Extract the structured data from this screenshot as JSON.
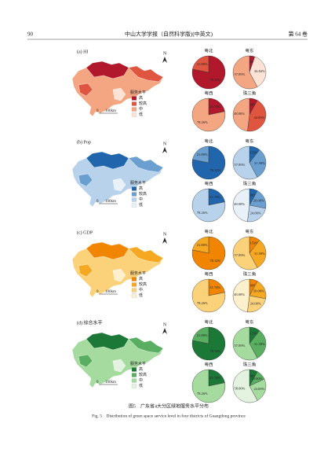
{
  "header": {
    "page": "90",
    "journal": "中山大学学报（自然科学版)(中英文)",
    "volume": "第 64 卷"
  },
  "panels": [
    {
      "label": "(a) HI",
      "north": "N",
      "scale": {
        "zero": "0",
        "end": "100km"
      },
      "legend": {
        "title": "服务水平",
        "levels": [
          "高",
          "较高",
          "中",
          "低"
        ],
        "colors": [
          "#b2182b",
          "#e0553f",
          "#f4a582",
          "#fde3d6"
        ]
      },
      "pies": [
        {
          "title": "粤北",
          "values": [
            78.12,
            21.88
          ],
          "value_labels": [
            "78.12%",
            "21.88%"
          ],
          "colors": [
            "#b2182b",
            "#e0553f"
          ]
        },
        {
          "title": "粤东",
          "values": [
            5.26,
            36.84,
            57.89
          ],
          "value_labels": [
            "5.26%",
            "36.84%",
            "57.89%"
          ],
          "colors": [
            "#b2182b",
            "#fde3d6",
            "#f4a582"
          ]
        },
        {
          "title": "粤西",
          "values": [
            21.74,
            78.26
          ],
          "value_labels": [
            "21.74%",
            "78.26%"
          ],
          "colors": [
            "#b2182b",
            "#f4a582"
          ]
        },
        {
          "title": "珠三角",
          "values": [
            8.0,
            44.0,
            48.0
          ],
          "value_labels": [
            "8.00%",
            "44.00%",
            "48.00%"
          ],
          "colors": [
            "#b2182b",
            "#e0553f",
            "#f4a582"
          ]
        }
      ]
    },
    {
      "label": "(b) Pop",
      "north": "N",
      "scale": {
        "zero": "0",
        "end": "100km"
      },
      "legend": {
        "title": "服务水平",
        "levels": [
          "高",
          "较高",
          "中",
          "低"
        ],
        "colors": [
          "#2166ac",
          "#6a9fd0",
          "#b7d2ea",
          "#e8f0f8"
        ]
      },
      "pies": [
        {
          "title": "粤北",
          "values": [
            78.12,
            21.88
          ],
          "value_labels": [
            "78.12%",
            "21.88%"
          ],
          "colors": [
            "#2166ac",
            "#6a9fd0"
          ]
        },
        {
          "title": "粤东",
          "values": [
            10.53,
            31.58,
            57.89
          ],
          "value_labels": [
            "10.53%",
            "31.58%",
            "57.89%"
          ],
          "colors": [
            "#2166ac",
            "#6a9fd0",
            "#b7d2ea"
          ]
        },
        {
          "title": "粤西",
          "values": [
            21.74,
            78.26
          ],
          "value_labels": [
            "21.74%",
            "78.26%"
          ],
          "colors": [
            "#2166ac",
            "#b7d2ea"
          ]
        },
        {
          "title": "珠三角",
          "values": [
            8.0,
            20.0,
            24.0,
            48.0
          ],
          "value_labels": [
            "8.00%",
            "20.00%",
            "24.00%",
            "48.00%"
          ],
          "colors": [
            "#2166ac",
            "#6a9fd0",
            "#b7d2ea",
            "#e8f0f8"
          ]
        }
      ]
    },
    {
      "label": "(c) GDP",
      "north": "N",
      "scale": {
        "zero": "0",
        "end": "100km"
      },
      "legend": {
        "title": "服务水平",
        "levels": [
          "高",
          "较高",
          "中",
          "低"
        ],
        "colors": [
          "#f28500",
          "#f7a823",
          "#fbd27a",
          "#fdf0cc"
        ]
      },
      "pies": [
        {
          "title": "粤北",
          "values": [
            78.12,
            21.88
          ],
          "value_labels": [
            "78.12%",
            "21.88%"
          ],
          "colors": [
            "#f28500",
            "#f7a823"
          ]
        },
        {
          "title": "粤东",
          "values": [
            10.53,
            31.58,
            57.89
          ],
          "value_labels": [
            "10.53%",
            "31.58%",
            "57.89%"
          ],
          "colors": [
            "#f28500",
            "#f7a823",
            "#fbd27a"
          ]
        },
        {
          "title": "粤西",
          "values": [
            21.74,
            78.26
          ],
          "value_labels": [
            "21.74%",
            "78.26%"
          ],
          "colors": [
            "#f28500",
            "#fbd27a"
          ]
        },
        {
          "title": "珠三角",
          "values": [
            8.0,
            20.0,
            24.0,
            48.0
          ],
          "value_labels": [
            "8.00%",
            "20.00%",
            "24.00%",
            "48.00%"
          ],
          "colors": [
            "#f28500",
            "#f7a823",
            "#fbd27a",
            "#fdf0cc"
          ]
        }
      ]
    },
    {
      "label": "(d) 综合水平",
      "north": "N",
      "scale": {
        "zero": "0",
        "end": "100km"
      },
      "legend": {
        "title": "服务水平",
        "levels": [
          "高",
          "较高",
          "中",
          "低"
        ],
        "colors": [
          "#1b7837",
          "#5aae61",
          "#a6dba0",
          "#e3f3df"
        ]
      },
      "pies": [
        {
          "title": "粤北",
          "values": [
            78.12,
            21.88
          ],
          "value_labels": [
            "78.12%",
            "21.88%"
          ],
          "colors": [
            "#1b7837",
            "#5aae61"
          ]
        },
        {
          "title": "粤东",
          "values": [
            10.53,
            31.58,
            57.89
          ],
          "value_labels": [
            "10.53%",
            "31.58%",
            "57.89%"
          ],
          "colors": [
            "#1b7837",
            "#5aae61",
            "#a6dba0"
          ]
        },
        {
          "title": "粤西",
          "values": [
            21.74,
            78.26
          ],
          "value_labels": [
            "21.74%",
            "78.26%"
          ],
          "colors": [
            "#1b7837",
            "#a6dba0"
          ]
        },
        {
          "title": "珠三角",
          "values": [
            8.0,
            10.0,
            24.0,
            58.0
          ],
          "value_labels": [
            "8.00%",
            "10.00%",
            "24.00%",
            "58.00%"
          ],
          "colors": [
            "#1b7837",
            "#5aae61",
            "#a6dba0",
            "#e3f3df"
          ]
        }
      ]
    }
  ],
  "caption": {
    "zh": "图5　广东省4大分区绿地服务水平分布",
    "en": "Fig. 5　Distribution of green space service level in four districts of Guangdong province"
  }
}
